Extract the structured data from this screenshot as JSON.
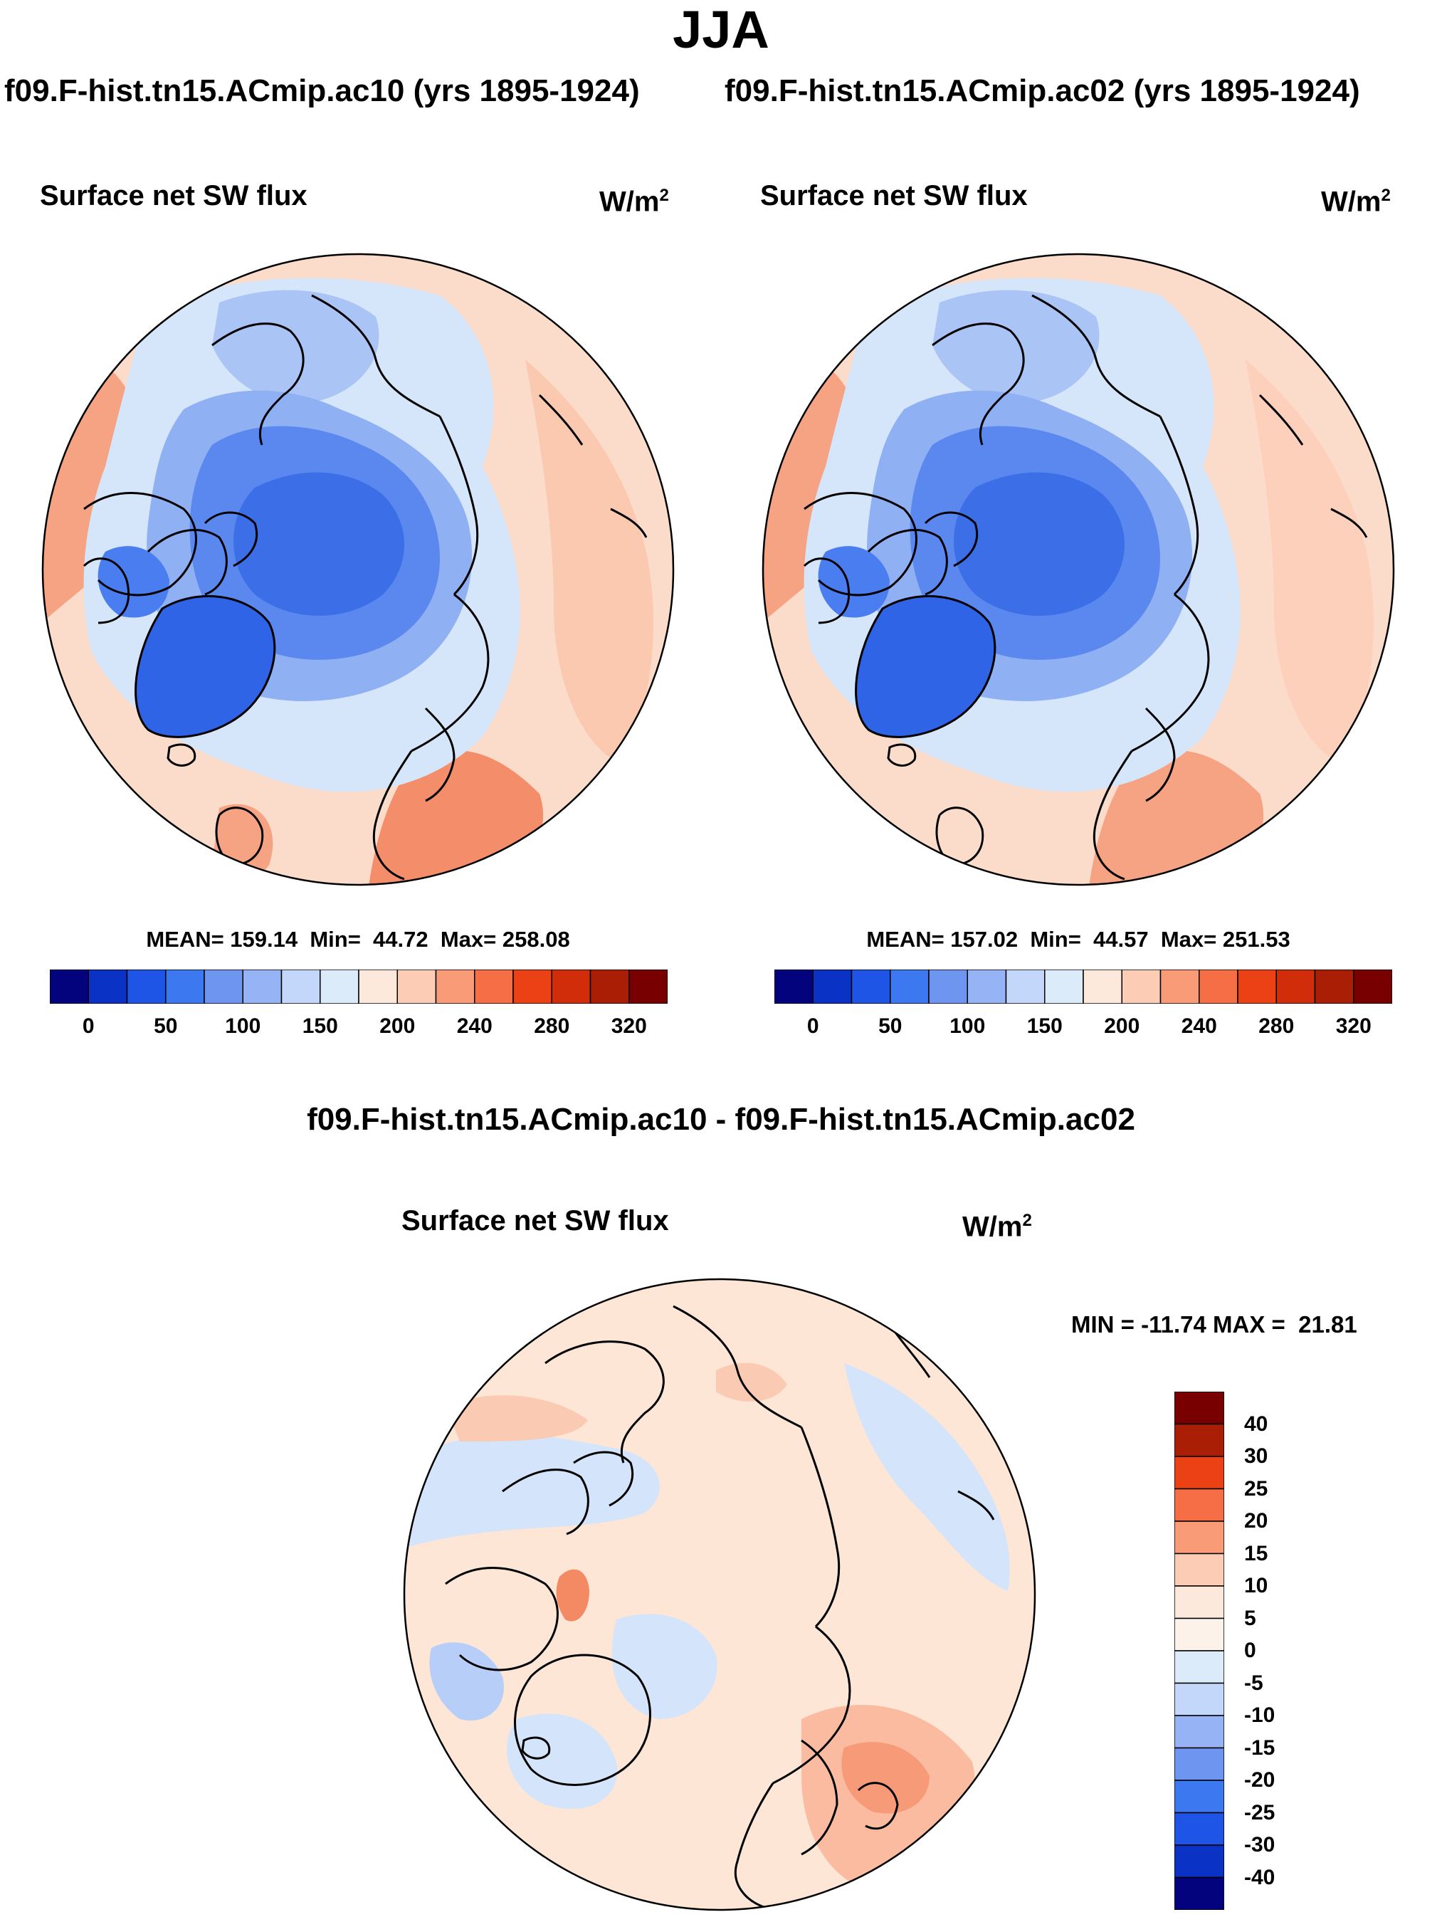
{
  "figure": {
    "season": "JJA",
    "case_left": "f09.F-hist.tn15.ACmip.ac10 (yrs 1895-1924)",
    "case_right": "f09.F-hist.tn15.ACmip.ac02 (yrs 1895-1924)",
    "diff_title": "f09.F-hist.tn15.ACmip.ac10 - f09.F-hist.tn15.ACmip.ac02"
  },
  "panels": [
    {
      "variable": "Surface net SW flux",
      "units": "W/m",
      "units_exp": "2",
      "stats": "MEAN= 159.14  Min=  44.72  Max= 258.08"
    },
    {
      "variable": "Surface net SW flux",
      "units": "W/m",
      "units_exp": "2",
      "stats": "MEAN= 157.02  Min=  44.57  Max= 251.53"
    }
  ],
  "diff_panel": {
    "variable": "Surface net SW flux",
    "units": "W/m",
    "units_exp": "2",
    "stats": "MIN = -11.74 MAX =  21.81"
  },
  "colorbar": {
    "labels": [
      "0",
      "50",
      "100",
      "150",
      "200",
      "240",
      "280",
      "320"
    ],
    "colors": [
      "#03037d",
      "#0a32c4",
      "#1e55e6",
      "#3c78f0",
      "#6e96f0",
      "#96b4f5",
      "#c3d7fa",
      "#dcebfa",
      "#fde9dc",
      "#fcccb4",
      "#fa9b78",
      "#f56e46",
      "#eb4114",
      "#d22d0a",
      "#aa1e05",
      "#780000"
    ]
  },
  "diff_colorbar": {
    "labels": [
      "40",
      "30",
      "25",
      "20",
      "15",
      "10",
      "5",
      "0",
      "-5",
      "-10",
      "-15",
      "-20",
      "-25",
      "-30",
      "-40"
    ],
    "colors": [
      "#780000",
      "#aa1e05",
      "#eb4114",
      "#f56e46",
      "#fa9b78",
      "#fcccb4",
      "#fde9dc",
      "#fdf2ea",
      "#dcebfa",
      "#c3d7fa",
      "#96b4f5",
      "#6e96f0",
      "#3c78f0",
      "#1e55e6",
      "#0a32c4",
      "#03037d"
    ]
  },
  "colors": {
    "ocean_warm": "#fcdccb",
    "ocean_light_blue": "#d6e6fa",
    "ice_blue": "#4a7ef0",
    "deep_ice": "#2f64e6",
    "diff_bg": "#fde6d6",
    "diff_blue": "#d4e4fa"
  }
}
